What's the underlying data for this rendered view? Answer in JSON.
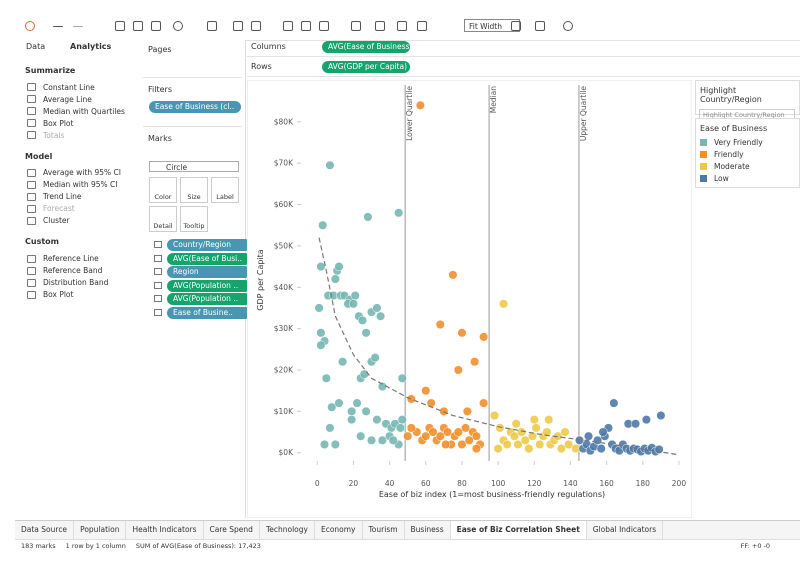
{
  "toolbar": {
    "fit": "Fit Width"
  },
  "analytics_pane": {
    "tabs": [
      "Data",
      "Analytics"
    ],
    "sections": [
      {
        "title": "Summarize",
        "items": [
          "Constant Line",
          "Average Line",
          "Median with Quartiles",
          "Box Plot",
          "Totals"
        ]
      },
      {
        "title": "Model",
        "items": [
          "Average with 95% CI",
          "Median with 95% CI",
          "Trend Line",
          "Forecast",
          "Cluster"
        ]
      },
      {
        "title": "Custom",
        "items": [
          "Reference Line",
          "Reference Band",
          "Distribution Band",
          "Box Plot"
        ]
      }
    ]
  },
  "shelves": {
    "pages": "Pages",
    "filters": {
      "title": "Filters",
      "pills": [
        "Ease of Business (cl.."
      ]
    },
    "marks": {
      "title": "Marks",
      "mark_type": "Circle",
      "buttons": [
        "Color",
        "Size",
        "Label",
        "Detail",
        "Tooltip"
      ],
      "pills": [
        "Country/Region",
        "AVG(Ease of Busi..",
        "Region",
        "AVG(Population ..",
        "AVG(Population ..",
        "Ease of Busine.."
      ]
    },
    "columns": {
      "label": "Columns",
      "pill": "AVG(Ease of Business)"
    },
    "rows": {
      "label": "Rows",
      "pill": "AVG(GDP per Capita)"
    }
  },
  "highlight": {
    "title": "Highlight Country/Region",
    "placeholder": "Highlight Country/Region"
  },
  "sheet_tabs": [
    "Data Source",
    "Population",
    "Health Indicators",
    "Care Spend",
    "Technology",
    "Economy",
    "Tourism",
    "Business",
    "Ease of Biz Correlation Sheet",
    "Global Indicators"
  ],
  "status": {
    "marks": "183 marks",
    "layout": "1 row by 1 column",
    "sum": "SUM of AVG(Ease of Business): 17,423",
    "ff": "FF: +0 -0"
  },
  "chart_data": {
    "type": "scatter",
    "xlabel": "Ease of biz index (1=most business-friendly regulations)",
    "ylabel": "GDP per Capita",
    "legend_title": "Ease of Business",
    "xlim": [
      -9,
      205
    ],
    "ylim": [
      -2000,
      86000
    ],
    "xticks": [
      0,
      20,
      40,
      60,
      80,
      100,
      120,
      140,
      160,
      180,
      200
    ],
    "yticks": [
      {
        "value": 0,
        "label": "$0K"
      },
      {
        "value": 10000,
        "label": "$10K"
      },
      {
        "value": 20000,
        "label": "$20K"
      },
      {
        "value": 30000,
        "label": "$30K"
      },
      {
        "value": 40000,
        "label": "$40K"
      },
      {
        "value": 50000,
        "label": "$50K"
      },
      {
        "value": 60000,
        "label": "$60K"
      },
      {
        "value": 70000,
        "label": "$70K"
      },
      {
        "value": 80000,
        "label": "$80K"
      }
    ],
    "reference_lines": [
      {
        "label": "Lower Quartile",
        "value": 48.6
      },
      {
        "label": "Median",
        "value": 95
      },
      {
        "label": "Upper Quartile",
        "value": 144.7
      }
    ],
    "trend_line": {
      "x": [
        1,
        5,
        10,
        20,
        30,
        50,
        75,
        100,
        125,
        150,
        175,
        200
      ],
      "values": [
        52000,
        44000,
        33000,
        23700,
        18000,
        13300,
        9000,
        6300,
        4300,
        2900,
        1200,
        -500
      ]
    },
    "series": [
      {
        "name": "Very Friendly",
        "color": "#76b7b2",
        "x": [
          7,
          28,
          45,
          2,
          3,
          1,
          2,
          4,
          6,
          9,
          11,
          12,
          10,
          13,
          15,
          18,
          17,
          20,
          21,
          23,
          25,
          27,
          30,
          33,
          35,
          2,
          5,
          14,
          24,
          26,
          30,
          32,
          36,
          22,
          8,
          12,
          19,
          27,
          33,
          38,
          41,
          43,
          47,
          47,
          7,
          4,
          19,
          36,
          40,
          45,
          42,
          30,
          24,
          46,
          10
        ],
        "values": [
          69500,
          57000,
          58000,
          45000,
          55000,
          35000,
          29000,
          27000,
          38000,
          38000,
          44000,
          45000,
          42000,
          38000,
          38000,
          37000,
          36000,
          36000,
          38000,
          33000,
          32000,
          29000,
          34000,
          35000,
          33000,
          26000,
          18000,
          22000,
          18000,
          19000,
          22000,
          23000,
          16000,
          12000,
          11000,
          12000,
          10000,
          10000,
          8000,
          7000,
          6000,
          7000,
          8000,
          18000,
          6000,
          2000,
          8000,
          3000,
          4000,
          2000,
          3000,
          3000,
          4000,
          6000,
          2000
        ]
      },
      {
        "name": "Friendly",
        "color": "#f28e2b",
        "x": [
          57,
          75,
          68,
          80,
          92,
          78,
          87,
          60,
          52,
          55,
          50,
          52,
          58,
          60,
          62,
          64,
          66,
          68,
          70,
          72,
          74,
          76,
          78,
          80,
          82,
          84,
          86,
          88,
          90,
          92,
          63,
          70,
          83,
          71,
          88
        ],
        "values": [
          84000,
          43000,
          31000,
          29000,
          28000,
          20000,
          22000,
          15000,
          13000,
          5000,
          4000,
          6000,
          3000,
          4000,
          6000,
          5000,
          3000,
          4000,
          6000,
          5000,
          2000,
          4000,
          5000,
          2000,
          6000,
          3000,
          5000,
          4000,
          2000,
          12000,
          12000,
          10000,
          10000,
          2000,
          1000
        ]
      },
      {
        "name": "Moderate",
        "color": "#edc948",
        "x": [
          103,
          98,
          101,
          103,
          105,
          107,
          109,
          111,
          113,
          115,
          117,
          119,
          121,
          123,
          125,
          127,
          129,
          131,
          133,
          135,
          137,
          139,
          143,
          120,
          128,
          110,
          100
        ],
        "values": [
          36000,
          9000,
          6000,
          3000,
          2000,
          5000,
          4000,
          2000,
          5000,
          3000,
          1000,
          4000,
          6000,
          2000,
          4000,
          5000,
          2000,
          3000,
          4000,
          1000,
          5000,
          2000,
          1000,
          8000,
          8000,
          7000,
          1000
        ]
      },
      {
        "name": "Low",
        "color": "#4e79a7",
        "x": [
          145,
          147,
          149,
          151,
          153,
          155,
          157,
          159,
          161,
          163,
          165,
          167,
          169,
          171,
          173,
          175,
          177,
          179,
          181,
          183,
          185,
          187,
          189,
          164,
          172,
          176,
          182,
          190,
          150,
          158
        ],
        "values": [
          3000,
          1000,
          2000,
          500,
          1500,
          3000,
          1000,
          4000,
          6000,
          2000,
          1000,
          500,
          2000,
          1000,
          500,
          1000,
          800,
          300,
          1000,
          500,
          1200,
          300,
          800,
          12000,
          7000,
          7000,
          8000,
          9000,
          4000,
          5000
        ]
      }
    ]
  }
}
